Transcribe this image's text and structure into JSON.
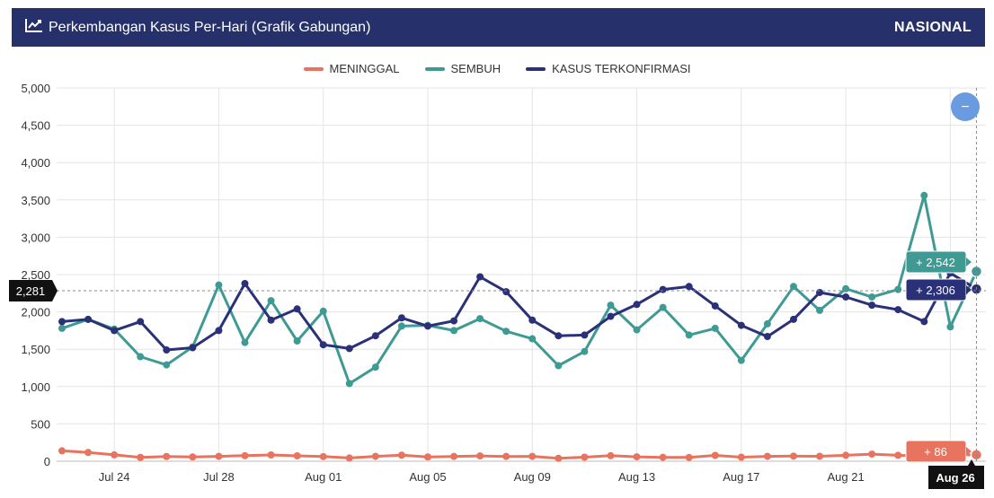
{
  "header": {
    "title": "Perkembangan Kasus Per-Hari (Grafik Gabungan)",
    "scope": "NASIONAL",
    "icon": "line-chart-icon"
  },
  "colors": {
    "header_bg": "#26306b",
    "meninggal": "#e8735e",
    "sembuh": "#3e9a92",
    "kasus": "#2b3178",
    "zoom_button": "#6a9be0"
  },
  "zoom_button": {
    "label": "−"
  },
  "chart_data": {
    "type": "line",
    "x": [
      "Jul 22",
      "Jul 23",
      "Jul 24",
      "Jul 25",
      "Jul 26",
      "Jul 27",
      "Jul 28",
      "Jul 29",
      "Jul 30",
      "Jul 31",
      "Aug 01",
      "Aug 02",
      "Aug 03",
      "Aug 04",
      "Aug 05",
      "Aug 06",
      "Aug 07",
      "Aug 08",
      "Aug 09",
      "Aug 10",
      "Aug 11",
      "Aug 12",
      "Aug 13",
      "Aug 14",
      "Aug 15",
      "Aug 16",
      "Aug 17",
      "Aug 18",
      "Aug 19",
      "Aug 20",
      "Aug 21",
      "Aug 22",
      "Aug 23",
      "Aug 24",
      "Aug 25",
      "Aug 26"
    ],
    "x_ticks": [
      "Jul 24",
      "Jul 28",
      "Aug 01",
      "Aug 05",
      "Aug 09",
      "Aug 13",
      "Aug 17",
      "Aug 21",
      "Aug"
    ],
    "ylim": [
      0,
      5000
    ],
    "y_ticks": [
      "0",
      "500",
      "1,000",
      "1,500",
      "2,000",
      "2,500",
      "3,000",
      "3,500",
      "4,000",
      "4,500",
      "5,000"
    ],
    "grid": true,
    "legend_position": "top-center",
    "series": [
      {
        "name": "MENINGGAL",
        "color": "#e8735e",
        "values": [
          139,
          117,
          85,
          51,
          63,
          57,
          65,
          74,
          84,
          72,
          62,
          43,
          65,
          81,
          57,
          64,
          71,
          64,
          65,
          39,
          54,
          74,
          59,
          52,
          50,
          78,
          54,
          65,
          68,
          66,
          79,
          95,
          79,
          68,
          80,
          86
        ]
      },
      {
        "name": "SEMBUH",
        "color": "#3e9a92",
        "values": [
          1780,
          1900,
          1770,
          1400,
          1290,
          1530,
          2360,
          1590,
          2150,
          1610,
          2010,
          1040,
          1260,
          1810,
          1820,
          1750,
          1910,
          1740,
          1640,
          1280,
          1470,
          2090,
          1760,
          2060,
          1690,
          1780,
          1350,
          1840,
          2340,
          2020,
          2310,
          2200,
          2300,
          3560,
          1800,
          2542
        ]
      },
      {
        "name": "KASUS TERKONFIRMASI",
        "color": "#2b3178",
        "values": [
          1870,
          1900,
          1750,
          1870,
          1490,
          1520,
          1750,
          2380,
          1890,
          2040,
          1560,
          1510,
          1680,
          1920,
          1810,
          1880,
          2470,
          2270,
          1890,
          1680,
          1690,
          1940,
          2100,
          2300,
          2340,
          2080,
          1820,
          1670,
          1900,
          2260,
          2200,
          2090,
          2030,
          1870,
          2520,
          2306
        ]
      }
    ],
    "tooltips": {
      "sembuh": "+ 2,542",
      "kasus": "+ 2,306",
      "meninggal": "+ 86"
    },
    "crosshair_y_label": "2,281",
    "crosshair_x_label": "Aug 26"
  }
}
